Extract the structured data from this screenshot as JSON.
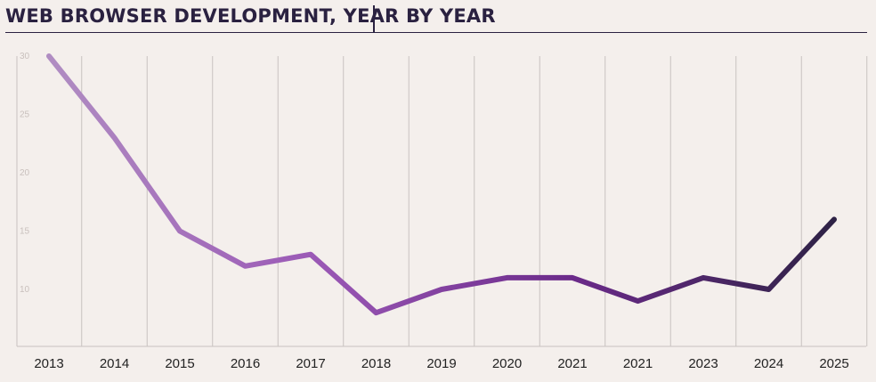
{
  "chart_data": {
    "type": "line",
    "title": "WEB BROWSER DEVELOPMENT, YEAR BY YEAR",
    "categories": [
      "2013",
      "2014",
      "2015",
      "2016",
      "2017",
      "2018",
      "2019",
      "2020",
      "2021",
      "2021",
      "2023",
      "2024",
      "2025"
    ],
    "values": [
      30,
      23,
      15,
      12,
      13,
      8,
      10,
      11,
      11,
      9,
      11,
      10,
      16
    ],
    "ylim": [
      5,
      30
    ],
    "yticks": [
      30,
      25,
      20,
      15,
      10
    ],
    "grid": true,
    "line_gradient": [
      "#b08dc2",
      "#9b59b6",
      "#6b2a8a",
      "#2e2245"
    ]
  }
}
